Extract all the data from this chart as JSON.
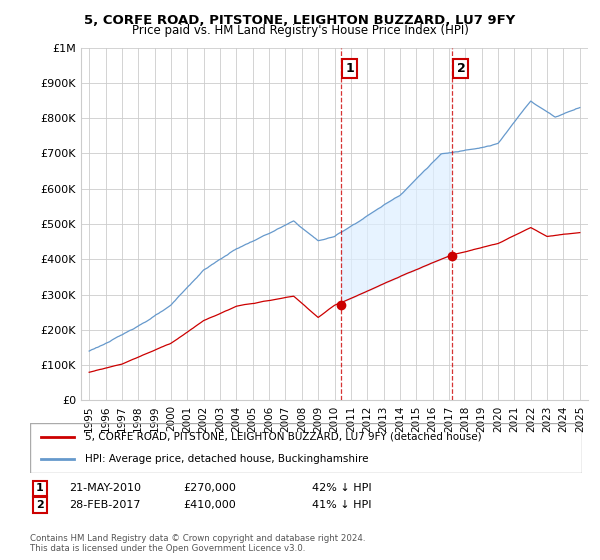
{
  "title": "5, CORFE ROAD, PITSTONE, LEIGHTON BUZZARD, LU7 9FY",
  "subtitle": "Price paid vs. HM Land Registry's House Price Index (HPI)",
  "legend_line1": "5, CORFE ROAD, PITSTONE, LEIGHTON BUZZARD, LU7 9FY (detached house)",
  "legend_line2": "HPI: Average price, detached house, Buckinghamshire",
  "red_line_color": "#cc0000",
  "blue_line_color": "#6699cc",
  "fill_color": "#ddeeff",
  "transaction1_date": "21-MAY-2010",
  "transaction1_price": "£270,000",
  "transaction1_hpi": "42% ↓ HPI",
  "transaction1_year": 2010.38,
  "transaction1_value": 270000,
  "transaction2_date": "28-FEB-2017",
  "transaction2_price": "£410,000",
  "transaction2_hpi": "41% ↓ HPI",
  "transaction2_year": 2017.16,
  "transaction2_value": 410000,
  "ylim": [
    0,
    1000000
  ],
  "xlim_start": 1994.5,
  "xlim_end": 2025.5,
  "yticks": [
    0,
    100000,
    200000,
    300000,
    400000,
    500000,
    600000,
    700000,
    800000,
    900000,
    1000000
  ],
  "ytick_labels": [
    "£0",
    "£100K",
    "£200K",
    "£300K",
    "£400K",
    "£500K",
    "£600K",
    "£700K",
    "£800K",
    "£900K",
    "£1M"
  ],
  "xticks": [
    1995,
    1996,
    1997,
    1998,
    1999,
    2000,
    2001,
    2002,
    2003,
    2004,
    2005,
    2006,
    2007,
    2008,
    2009,
    2010,
    2011,
    2012,
    2013,
    2014,
    2015,
    2016,
    2017,
    2018,
    2019,
    2020,
    2021,
    2022,
    2023,
    2024,
    2025
  ],
  "background_color": "#ffffff",
  "grid_color": "#cccccc",
  "footnote": "Contains HM Land Registry data © Crown copyright and database right 2024.\nThis data is licensed under the Open Government Licence v3.0."
}
